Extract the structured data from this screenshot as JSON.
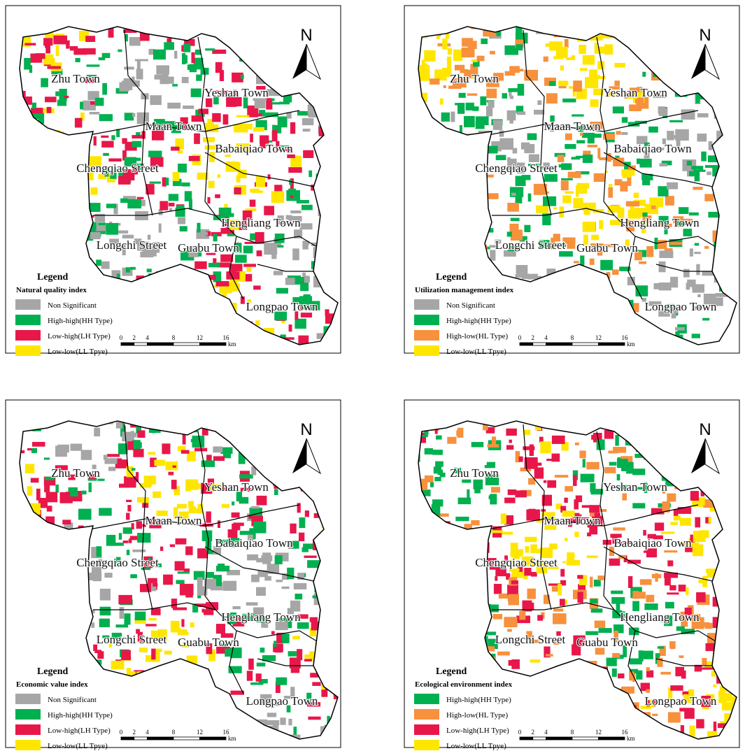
{
  "panels": [
    {
      "index_title": "Natural quality index",
      "legend_title": "Legend",
      "north": "N",
      "items": [
        {
          "label": "Non Significant",
          "color": "#a6a6a6"
        },
        {
          "label": "High-high(HH Type)",
          "color": "#00b050"
        },
        {
          "label": "Low-high(LH Type)",
          "color": "#e8174a"
        },
        {
          "label": "Low-low(LL Tpye)",
          "color": "#ffe600"
        }
      ],
      "towns": [
        "Zhu Town",
        "Yeshan Town",
        "Maan Town",
        "Babaiqiao Town",
        "Chengqiao Street",
        "Hengliang Town",
        "Longchi Street",
        "Guabu Town",
        "Longpao Town"
      ],
      "scale": {
        "ticks": [
          0,
          2,
          4,
          8,
          12,
          16
        ],
        "unit": "km"
      }
    },
    {
      "index_title": "Utilization management index",
      "legend_title": "Legend",
      "north": "N",
      "items": [
        {
          "label": "Non Significant",
          "color": "#a6a6a6"
        },
        {
          "label": "High-high(HH Type)",
          "color": "#00b050"
        },
        {
          "label": "High-low(HL Type)",
          "color": "#f7913d"
        },
        {
          "label": "Low-low(LL Tpye)",
          "color": "#ffe600"
        }
      ],
      "towns": [
        "Zhu Town",
        "Yeshan Town",
        "Maan Town",
        "Babaiqiao Town",
        "Chengqiao Street",
        "Hengliang Town",
        "Longchi Street",
        "Guabu Town",
        "Longpao Town"
      ],
      "scale": {
        "ticks": [
          0,
          2,
          4,
          8,
          12,
          16
        ],
        "unit": "km"
      }
    },
    {
      "index_title": "Economic value index",
      "legend_title": "Legend",
      "north": "N",
      "items": [
        {
          "label": "Non Significant",
          "color": "#a6a6a6"
        },
        {
          "label": "High-high(HH Type)",
          "color": "#00b050"
        },
        {
          "label": "Low-high(LH Type)",
          "color": "#e8174a"
        },
        {
          "label": "Low-low(LL Tpye)",
          "color": "#ffe600"
        }
      ],
      "towns": [
        "Zhu Town",
        "Yeshan Town",
        "Maan Town",
        "Babaiqiao Town",
        "Chengqiao Street",
        "Hengliang Town",
        "Longchi Street",
        "Guabu Town",
        "Longpao Town"
      ],
      "scale": {
        "ticks": [
          0,
          2,
          4,
          8,
          12,
          16
        ],
        "unit": "km"
      }
    },
    {
      "index_title": "Ecological environment index",
      "legend_title": "Legend",
      "north": "N",
      "items": [
        {
          "label": "High-high(HH Type)",
          "color": "#00b050"
        },
        {
          "label": "High-low(HL Type)",
          "color": "#f7913d"
        },
        {
          "label": "Low-high(LH Type)",
          "color": "#e8174a"
        },
        {
          "label": "Low-low(LL Tpye)",
          "color": "#ffe600"
        }
      ],
      "towns": [
        "Zhu Town",
        "Yeshan Town",
        "Maan Town",
        "Babaiqiao Town",
        "Chengqiao Street",
        "Hengliang Town",
        "Longchi Street",
        "Guabu Town",
        "Longpao Town"
      ],
      "scale": {
        "ticks": [
          0,
          2,
          4,
          8,
          12,
          16
        ],
        "unit": "km"
      }
    }
  ]
}
